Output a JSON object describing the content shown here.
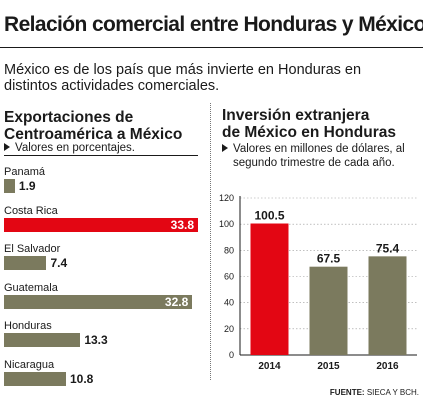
{
  "title": "Relación comercial entre Honduras y México",
  "intro": "México es de los país que más invierte en Honduras en distintos actividades comerciales.",
  "left_panel": {
    "title_line1": "Exportaciones de",
    "title_line2": "Centroamérica a México",
    "note": "Valores en porcentajes."
  },
  "right_panel": {
    "title_line1": "Inversión extranjera",
    "title_line2": "de México en Honduras",
    "note_line1": "Valores en millones de dólares, al",
    "note_line2": "segundo trimestre de cada año."
  },
  "source": {
    "label": "FUENTE:",
    "text": "SIECA Y BCH."
  },
  "colors": {
    "highlight": "#e30613",
    "neutral": "#7b7a5e"
  },
  "chart_data": [
    {
      "type": "bar",
      "orientation": "horizontal",
      "title": "Exportaciones de Centroamérica a México",
      "categories": [
        "Panamá",
        "Costa Rica",
        "El Salvador",
        "Guatemala",
        "Honduras",
        "Nicaragua"
      ],
      "values": [
        1.9,
        33.8,
        7.4,
        32.8,
        13.3,
        10.8
      ],
      "value_labels": [
        "1.9",
        "33.8",
        "7.4",
        "32.8",
        "13.3",
        "10.8"
      ],
      "highlight_index": 1
    },
    {
      "type": "bar",
      "orientation": "vertical",
      "title": "Inversión extranjera de México en Honduras",
      "categories": [
        "2014",
        "2015",
        "2016"
      ],
      "values": [
        100.5,
        67.5,
        75.4
      ],
      "value_labels": [
        "100.5",
        "67.5",
        "75.4"
      ],
      "ylim": [
        0,
        120
      ],
      "yticks": [
        "0",
        "20",
        "40",
        "60",
        "80",
        "100",
        "120"
      ],
      "grid": true,
      "highlight_index": 0
    }
  ]
}
